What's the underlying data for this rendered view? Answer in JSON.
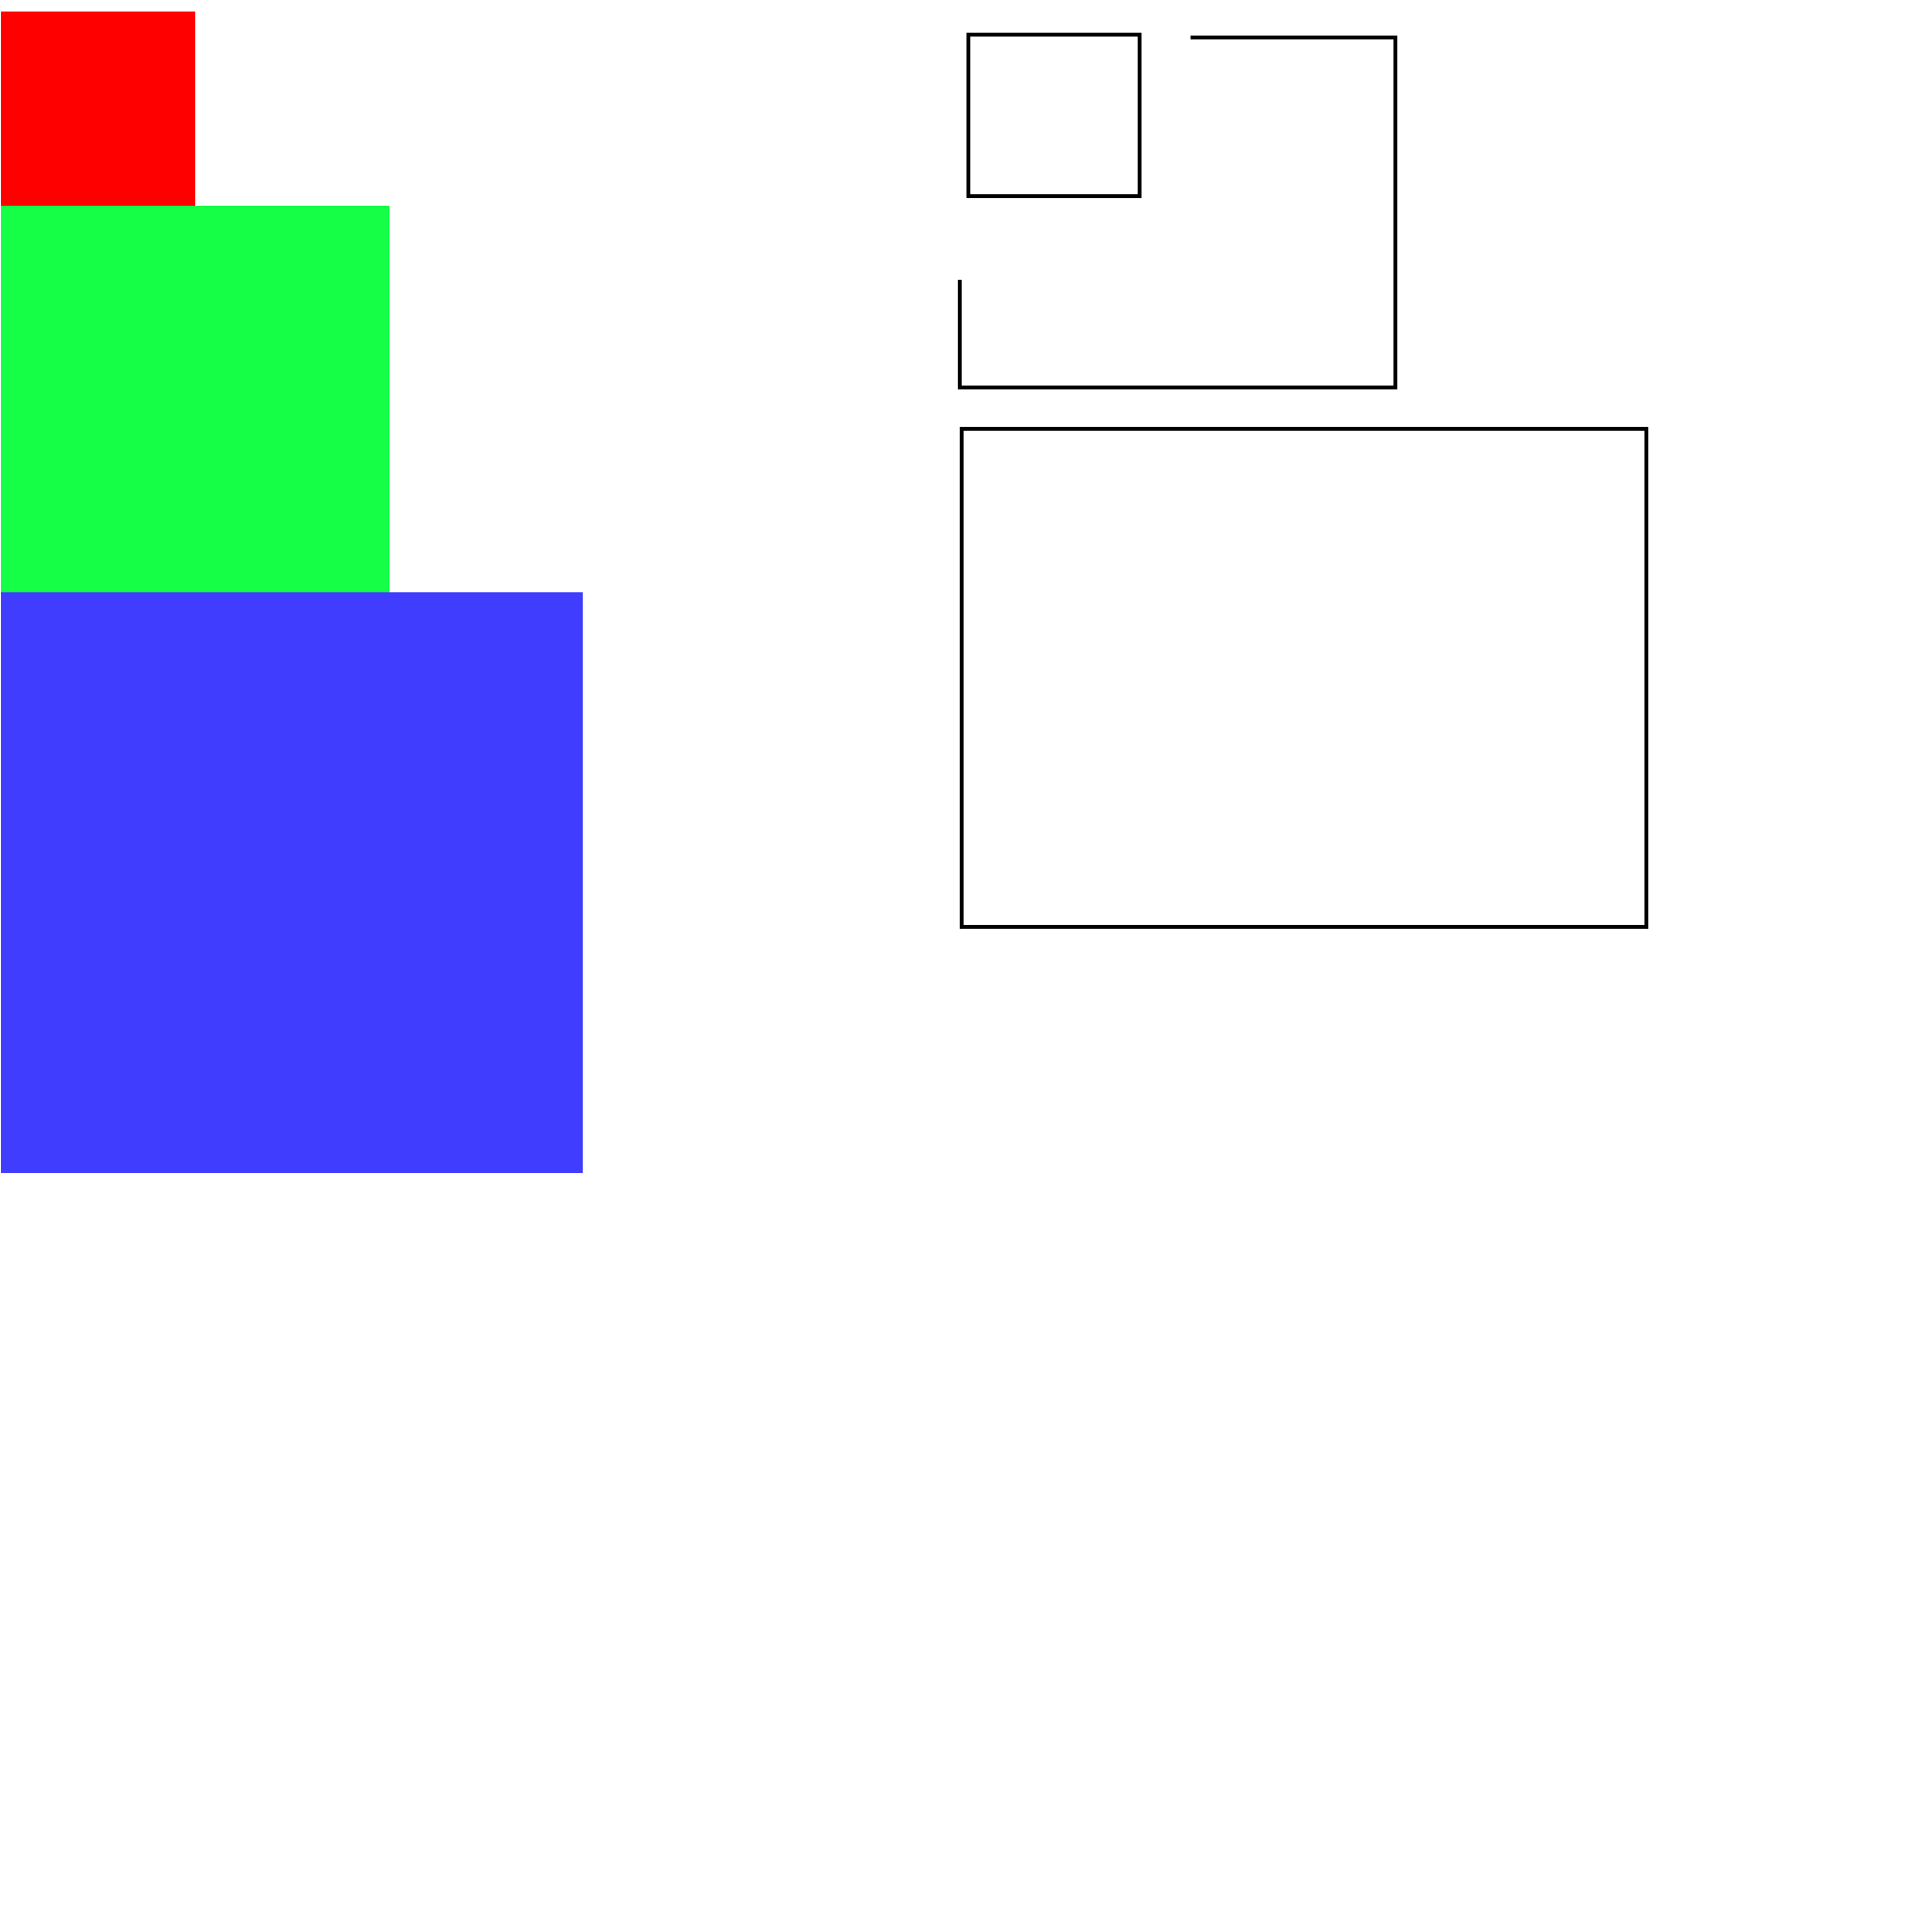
{
  "background_color": "#ffffff",
  "filled_blocks": [
    {
      "name": "red-square",
      "color": "#ff0000"
    },
    {
      "name": "green-square",
      "color": "#14ff46"
    },
    {
      "name": "blue-square",
      "color": "#403dff"
    }
  ],
  "outline": {
    "stroke_color": "#000000",
    "shapes": [
      {
        "name": "small-square-outline"
      },
      {
        "name": "open-bracket-outline"
      },
      {
        "name": "large-rectangle-outline"
      }
    ]
  }
}
